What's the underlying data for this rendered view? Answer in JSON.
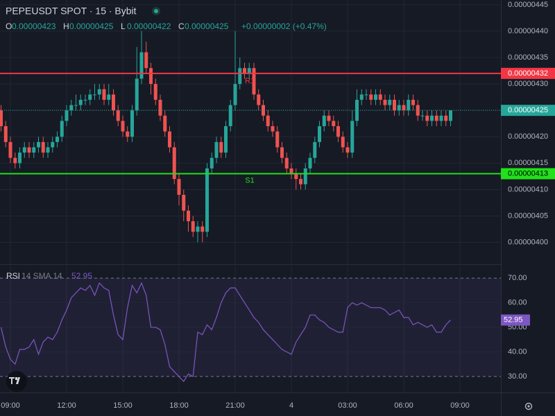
{
  "chart_data": [
    {
      "type": "candlestick",
      "title": "PEPEUSDT SPOT · 15 · Bybit",
      "ohlc_names": [
        "O",
        "H",
        "L",
        "C"
      ],
      "change": "+0.00000002 (+0.47%)",
      "up_color": "#26a69a",
      "down_color": "#ef5350",
      "categories": [
        null,
        null,
        "09:00",
        null,
        null,
        null,
        null,
        null,
        null,
        null,
        null,
        null,
        null,
        null,
        "12:00",
        null,
        null,
        null,
        null,
        null,
        null,
        null,
        null,
        null,
        null,
        null,
        "15:00",
        null,
        null,
        null,
        null,
        null,
        null,
        null,
        null,
        null,
        null,
        null,
        "18:00",
        null,
        null,
        null,
        null,
        null,
        null,
        null,
        null,
        null,
        null,
        null,
        "21:00",
        null,
        null,
        null,
        null,
        null,
        null,
        null,
        null,
        null,
        null,
        null,
        "4",
        null,
        null,
        null,
        null,
        null,
        null,
        null,
        null,
        null,
        null,
        null,
        "03:00",
        null,
        null,
        null,
        null,
        null,
        null,
        null,
        null,
        null,
        null,
        null,
        "06:00",
        null,
        null,
        null,
        null,
        null,
        null,
        null,
        null,
        null,
        null,
        null,
        "09:00"
      ],
      "open": [
        4.25e-06,
        4.22e-06,
        4.19e-06,
        4.16e-06,
        4.15e-06,
        4.17e-06,
        4.18e-06,
        4.17e-06,
        4.18e-06,
        4.19e-06,
        4.17e-06,
        4.18e-06,
        4.19e-06,
        4.2e-06,
        4.23e-06,
        4.25e-06,
        4.26e-06,
        4.26e-06,
        4.27e-06,
        4.27e-06,
        4.28e-06,
        4.28e-06,
        4.29e-06,
        4.27e-06,
        4.28e-06,
        4.25e-06,
        4.23e-06,
        4.21e-06,
        4.2e-06,
        4.25e-06,
        4.31e-06,
        4.36e-06,
        4.33e-06,
        4.3e-06,
        4.27e-06,
        4.24e-06,
        4.21e-06,
        4.18e-06,
        4.12e-06,
        4.09e-06,
        4.06e-06,
        4.04e-06,
        4.02e-06,
        4.03e-06,
        4.02e-06,
        4.14e-06,
        4.16e-06,
        4.19e-06,
        4.17e-06,
        4.22e-06,
        4.26e-06,
        4.3e-06,
        4.33e-06,
        4.32e-06,
        4.33e-06,
        4.28e-06,
        4.26e-06,
        4.24e-06,
        4.22e-06,
        4.21e-06,
        4.18e-06,
        4.16e-06,
        4.14e-06,
        4.13e-06,
        4.12e-06,
        4.11e-06,
        4.14e-06,
        4.16e-06,
        4.19e-06,
        4.22e-06,
        4.24e-06,
        4.23e-06,
        4.22e-06,
        4.2e-06,
        4.18e-06,
        4.17e-06,
        4.23e-06,
        4.27e-06,
        4.28e-06,
        4.28e-06,
        4.27e-06,
        4.28e-06,
        4.27e-06,
        4.26e-06,
        4.27e-06,
        4.25e-06,
        4.26e-06,
        4.25e-06,
        4.27e-06,
        4.26e-06,
        4.24e-06,
        4.24e-06,
        4.23e-06,
        4.24e-06,
        4.23e-06,
        4.24e-06,
        4.23e-06,
        null,
        null
      ],
      "high": [
        4.26e-06,
        4.23e-06,
        4.2e-06,
        4.17e-06,
        4.18e-06,
        4.19e-06,
        4.19e-06,
        4.19e-06,
        4.2e-06,
        4.2e-06,
        4.19e-06,
        4.2e-06,
        4.21e-06,
        4.24e-06,
        4.26e-06,
        4.27e-06,
        4.28e-06,
        4.28e-06,
        4.28e-06,
        4.29e-06,
        4.3e-06,
        4.3e-06,
        4.3e-06,
        4.3e-06,
        4.29e-06,
        4.26e-06,
        4.24e-06,
        4.22e-06,
        4.26e-06,
        4.37e-06,
        4.4e-06,
        4.38e-06,
        4.34e-06,
        4.31e-06,
        4.28e-06,
        4.25e-06,
        4.22e-06,
        4.19e-06,
        4.13e-06,
        4.1e-06,
        4.07e-06,
        4.05e-06,
        4.04e-06,
        4.04e-06,
        4.15e-06,
        4.17e-06,
        4.2e-06,
        4.2e-06,
        4.23e-06,
        4.27e-06,
        4.4e-06,
        4.35e-06,
        4.34e-06,
        4.34e-06,
        4.34e-06,
        4.29e-06,
        4.27e-06,
        4.25e-06,
        4.23e-06,
        4.22e-06,
        4.19e-06,
        4.17e-06,
        4.15e-06,
        4.14e-06,
        4.13e-06,
        4.15e-06,
        4.17e-06,
        4.2e-06,
        4.23e-06,
        4.25e-06,
        4.25e-06,
        4.24e-06,
        4.23e-06,
        4.21e-06,
        4.19e-06,
        4.25e-06,
        4.29e-06,
        4.29e-06,
        4.29e-06,
        4.29e-06,
        4.29e-06,
        4.29e-06,
        4.28e-06,
        4.28e-06,
        4.28e-06,
        4.27e-06,
        4.27e-06,
        4.28e-06,
        4.28e-06,
        4.27e-06,
        4.25e-06,
        4.25e-06,
        4.25e-06,
        4.25e-06,
        4.25e-06,
        4.25e-06,
        4.25e-06,
        null,
        null
      ],
      "low": [
        4.21e-06,
        4.18e-06,
        4.15e-06,
        4.14e-06,
        4.14e-06,
        4.16e-06,
        4.16e-06,
        4.16e-06,
        4.17e-06,
        4.16e-06,
        4.16e-06,
        4.17e-06,
        4.18e-06,
        4.19e-06,
        4.22e-06,
        4.24e-06,
        4.25e-06,
        4.25e-06,
        4.26e-06,
        4.26e-06,
        4.27e-06,
        4.27e-06,
        4.26e-06,
        4.26e-06,
        4.24e-06,
        4.22e-06,
        4.2e-06,
        4.19e-06,
        4.19e-06,
        4.24e-06,
        4.3e-06,
        4.32e-06,
        4.28e-06,
        4.26e-06,
        4.23e-06,
        4.2e-06,
        4.17e-06,
        4.11e-06,
        4.07e-06,
        4.04e-06,
        4.02e-06,
        4.01e-06,
        4e-06,
        4e-06,
        4.01e-06,
        4.13e-06,
        4.15e-06,
        4.16e-06,
        4.16e-06,
        4.21e-06,
        4.25e-06,
        4.29e-06,
        4.31e-06,
        4.31e-06,
        4.27e-06,
        4.25e-06,
        4.23e-06,
        4.21e-06,
        4.2e-06,
        4.17e-06,
        4.15e-06,
        4.13e-06,
        4.12e-06,
        4.1e-06,
        4.1e-06,
        4.1e-06,
        4.13e-06,
        4.15e-06,
        4.18e-06,
        4.21e-06,
        4.22e-06,
        4.21e-06,
        4.19e-06,
        4.17e-06,
        4.16e-06,
        4.16e-06,
        4.22e-06,
        4.26e-06,
        4.27e-06,
        4.26e-06,
        4.26e-06,
        4.26e-06,
        4.25e-06,
        4.25e-06,
        4.24e-06,
        4.24e-06,
        4.24e-06,
        4.24e-06,
        4.25e-06,
        4.23e-06,
        4.23e-06,
        4.22e-06,
        4.22e-06,
        4.22e-06,
        4.22e-06,
        4.22e-06,
        4.22e-06,
        null,
        null
      ],
      "close": [
        4.22e-06,
        4.19e-06,
        4.16e-06,
        4.15e-06,
        4.17e-06,
        4.18e-06,
        4.17e-06,
        4.18e-06,
        4.19e-06,
        4.17e-06,
        4.18e-06,
        4.19e-06,
        4.2e-06,
        4.23e-06,
        4.25e-06,
        4.26e-06,
        4.26e-06,
        4.27e-06,
        4.27e-06,
        4.28e-06,
        4.28e-06,
        4.29e-06,
        4.27e-06,
        4.28e-06,
        4.25e-06,
        4.23e-06,
        4.21e-06,
        4.2e-06,
        4.25e-06,
        4.31e-06,
        4.36e-06,
        4.33e-06,
        4.3e-06,
        4.27e-06,
        4.24e-06,
        4.21e-06,
        4.18e-06,
        4.12e-06,
        4.09e-06,
        4.06e-06,
        4.04e-06,
        4.02e-06,
        4.03e-06,
        4.02e-06,
        4.14e-06,
        4.16e-06,
        4.19e-06,
        4.17e-06,
        4.22e-06,
        4.26e-06,
        4.3e-06,
        4.33e-06,
        4.32e-06,
        4.33e-06,
        4.28e-06,
        4.26e-06,
        4.24e-06,
        4.22e-06,
        4.21e-06,
        4.18e-06,
        4.16e-06,
        4.14e-06,
        4.13e-06,
        4.12e-06,
        4.11e-06,
        4.14e-06,
        4.16e-06,
        4.19e-06,
        4.22e-06,
        4.24e-06,
        4.23e-06,
        4.22e-06,
        4.2e-06,
        4.18e-06,
        4.17e-06,
        4.23e-06,
        4.27e-06,
        4.28e-06,
        4.28e-06,
        4.27e-06,
        4.28e-06,
        4.27e-06,
        4.26e-06,
        4.27e-06,
        4.25e-06,
        4.26e-06,
        4.25e-06,
        4.27e-06,
        4.26e-06,
        4.24e-06,
        4.24e-06,
        4.23e-06,
        4.24e-06,
        4.23e-06,
        4.24e-06,
        4.23e-06,
        4.25e-06,
        null,
        null
      ],
      "levels": [
        {
          "name": "R1",
          "value": 4.32e-06,
          "color": "#f23645"
        },
        {
          "name": "S1",
          "value": 4.13e-06,
          "color": "#22e01b"
        }
      ],
      "ylim": [
        3.96e-06,
        4.459e-06
      ],
      "yticks": [
        {
          "value": 4e-06,
          "label": "0.00000400"
        },
        4.05e-06,
        {
          "value": 4.1e-06,
          "label": "0.00000410"
        },
        4.15e-06,
        {
          "value": 4.2e-06,
          "label": "0.00000420"
        },
        4.25e-06,
        {
          "value": 4.3e-06,
          "label": "0.00000430"
        },
        4.35e-06,
        {
          "value": 4.4e-06,
          "label": "0.00000440"
        },
        4.45e-06
      ],
      "grid": true
    },
    {
      "type": "line",
      "title": "RSI",
      "subtitle": "14 SMA 14",
      "color": "#7e57c2",
      "values": [
        50,
        42,
        37,
        35,
        41,
        41,
        42,
        45,
        39,
        44,
        46,
        45,
        48,
        53,
        57,
        62,
        64,
        66,
        65,
        67,
        63,
        68,
        66,
        65,
        55,
        47,
        45,
        58,
        67,
        64,
        68,
        63,
        50,
        50,
        49,
        43,
        34,
        32,
        30,
        28,
        31,
        30,
        48,
        47,
        51,
        49,
        54,
        60,
        64,
        66,
        66,
        63,
        60,
        57,
        54,
        52,
        49,
        47,
        45,
        43,
        41,
        40,
        39,
        44,
        47,
        50,
        55,
        55,
        53,
        52,
        50,
        49,
        48,
        48,
        58,
        60,
        59,
        60,
        59,
        58,
        58,
        58,
        57,
        55,
        56,
        57,
        54,
        54,
        51,
        52,
        51,
        50,
        51,
        48,
        48,
        51,
        52.95,
        null,
        null
      ],
      "ylim": [
        23.8,
        75.1
      ],
      "yticks": [
        {
          "value": 30,
          "label": "30.00"
        },
        {
          "value": 40,
          "label": "40.00"
        },
        {
          "value": 50,
          "label": "50.00"
        },
        {
          "value": 60,
          "label": "60.00"
        },
        {
          "value": 70,
          "label": "70.00"
        }
      ]
    }
  ]
}
